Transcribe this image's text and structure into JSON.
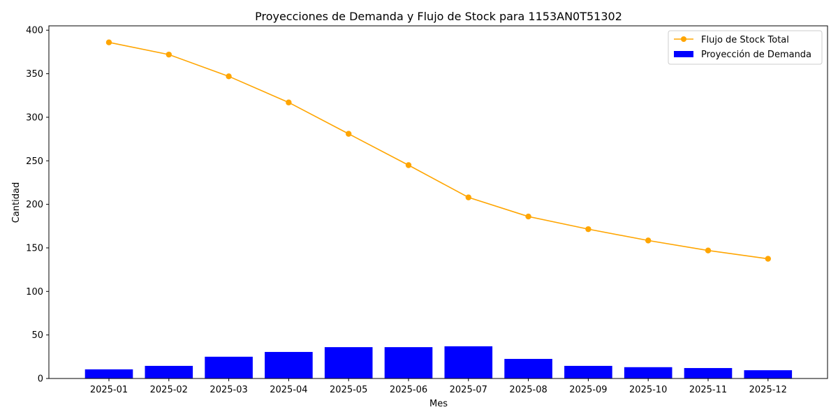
{
  "chart_data": {
    "type": "bar+line",
    "title": "Proyecciones de Demanda y Flujo de Stock para 1153AN0T51302",
    "xlabel": "Mes",
    "ylabel": "Cantidad",
    "categories": [
      "2025-01",
      "2025-02",
      "2025-03",
      "2025-04",
      "2025-05",
      "2025-06",
      "2025-07",
      "2025-08",
      "2025-09",
      "2025-10",
      "2025-11",
      "2025-12"
    ],
    "ylim": [
      0,
      405
    ],
    "yticks": [
      0,
      50,
      100,
      150,
      200,
      250,
      300,
      350,
      400
    ],
    "grid": false,
    "legend_position": "top-right",
    "series": [
      {
        "name": "Flujo de Stock Total",
        "kind": "line",
        "color": "#ffa500",
        "values": [
          386,
          372,
          347,
          317,
          281,
          245,
          208,
          186,
          171.5,
          158.5,
          147,
          137.5
        ]
      },
      {
        "name": "Proyección de Demanda",
        "kind": "bar",
        "color": "#0000ff",
        "values": [
          10.5,
          14.5,
          25,
          30.5,
          36,
          36,
          37,
          22.5,
          14.5,
          13,
          12,
          9.5
        ]
      }
    ]
  }
}
